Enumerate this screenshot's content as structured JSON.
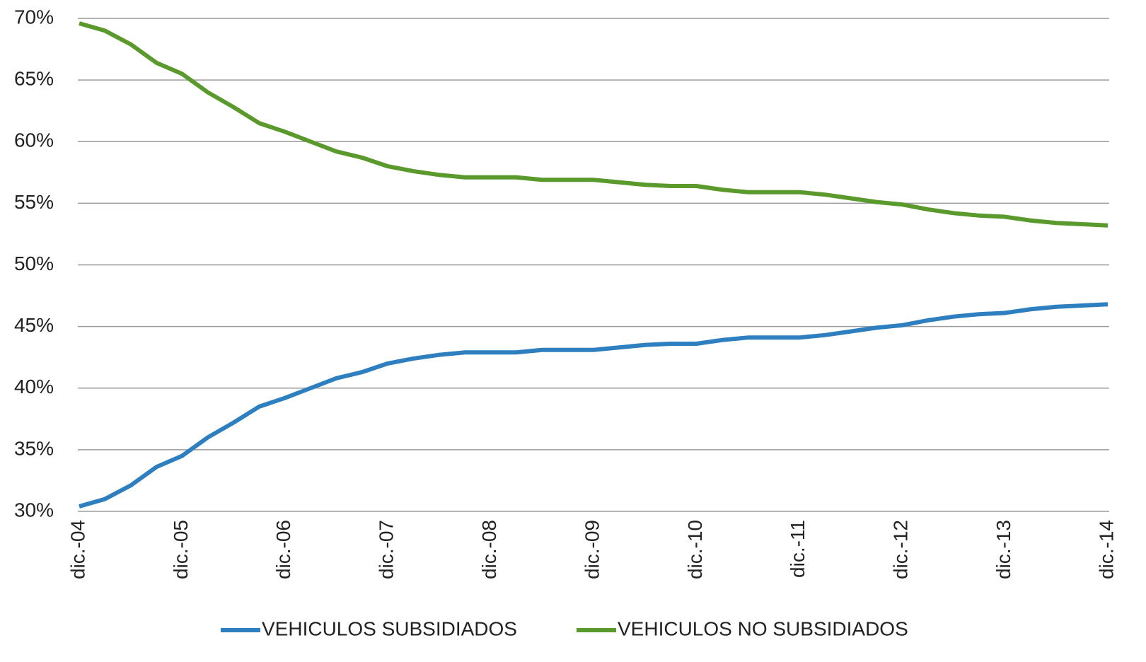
{
  "chart_data": {
    "type": "line",
    "categories": [
      "dic.-04",
      null,
      null,
      null,
      "dic.-05",
      null,
      null,
      null,
      "dic.-06",
      null,
      null,
      null,
      "dic.-07",
      null,
      null,
      null,
      "dic.-08",
      null,
      null,
      null,
      "dic.-09",
      null,
      null,
      null,
      "dic.-10",
      null,
      null,
      null,
      "dic.-11",
      null,
      null,
      null,
      "dic.-12",
      null,
      null,
      null,
      "dic.-13",
      null,
      null,
      null,
      "dic.-14"
    ],
    "series": [
      {
        "name": "VEHICULOS SUBSIDIADOS",
        "color": "#2e7fbf",
        "values": [
          30.4,
          31.0,
          32.1,
          33.6,
          34.5,
          36.0,
          37.2,
          38.5,
          39.2,
          40.0,
          40.8,
          41.3,
          42.0,
          42.4,
          42.7,
          42.9,
          42.9,
          42.9,
          43.1,
          43.1,
          43.1,
          43.3,
          43.5,
          43.6,
          43.6,
          43.9,
          44.1,
          44.1,
          44.1,
          44.3,
          44.6,
          44.9,
          45.1,
          45.5,
          45.8,
          46.0,
          46.1,
          46.4,
          46.6,
          46.7,
          46.8
        ]
      },
      {
        "name": "VEHICULOS NO SUBSIDIADOS",
        "color": "#5a9a2c",
        "values": [
          69.6,
          69.0,
          67.9,
          66.4,
          65.5,
          64.0,
          62.8,
          61.5,
          60.8,
          60.0,
          59.2,
          58.7,
          58.0,
          57.6,
          57.3,
          57.1,
          57.1,
          57.1,
          56.9,
          56.9,
          56.9,
          56.7,
          56.5,
          56.4,
          56.4,
          56.1,
          55.9,
          55.9,
          55.9,
          55.7,
          55.4,
          55.1,
          54.9,
          54.5,
          54.2,
          54.0,
          53.9,
          53.6,
          53.4,
          53.3,
          53.2
        ]
      }
    ],
    "ylim": [
      30,
      70
    ],
    "yticks": [
      {
        "value": 30,
        "label": "30%"
      },
      {
        "value": 35,
        "label": "35%"
      },
      {
        "value": 40,
        "label": "40%"
      },
      {
        "value": 45,
        "label": "45%"
      },
      {
        "value": 50,
        "label": "50%"
      },
      {
        "value": 55,
        "label": "55%"
      },
      {
        "value": 60,
        "label": "60%"
      },
      {
        "value": 65,
        "label": "65%"
      },
      {
        "value": 70,
        "label": "70%"
      }
    ],
    "grid": true,
    "legend": "bottom"
  }
}
